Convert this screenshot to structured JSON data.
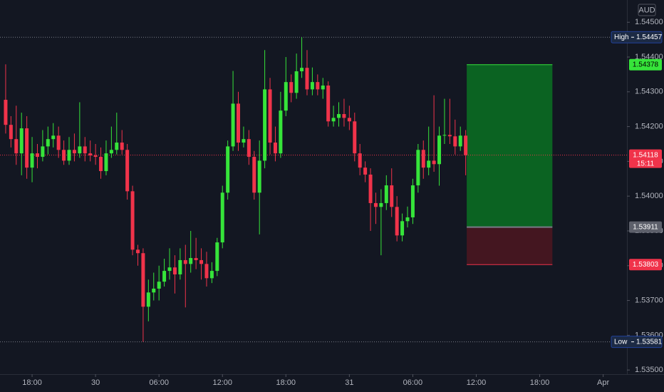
{
  "chart_data": {
    "type": "candlestick",
    "currency": "AUD",
    "up_color": "#36e43a",
    "down_color": "#f0334a",
    "grid": false,
    "xlim": [
      -1.07,
      117.5
    ],
    "ylim": [
      1.53488,
      1.54564
    ],
    "xticks": [
      {
        "value": 5,
        "label": "18:00"
      },
      {
        "value": 17,
        "label": "30"
      },
      {
        "value": 29,
        "label": "06:00"
      },
      {
        "value": 41,
        "label": "12:00"
      },
      {
        "value": 53,
        "label": "18:00"
      },
      {
        "value": 65,
        "label": "31"
      },
      {
        "value": 77,
        "label": "06:00"
      },
      {
        "value": 89,
        "label": "12:00"
      },
      {
        "value": 101,
        "label": "18:00"
      },
      {
        "value": 113,
        "label": "Apr"
      }
    ],
    "yticks": [
      {
        "value": 1.545,
        "label": "1.54500"
      },
      {
        "value": 1.544,
        "label": "1.54400"
      },
      {
        "value": 1.543,
        "label": "1.54300"
      },
      {
        "value": 1.542,
        "label": "1.54200"
      },
      {
        "value": 1.541,
        "label": "1.54100"
      },
      {
        "value": 1.54,
        "label": "1.54000"
      },
      {
        "value": 1.539,
        "label": "1.53900"
      },
      {
        "value": 1.538,
        "label": "1.53800"
      },
      {
        "value": 1.537,
        "label": "1.53700"
      },
      {
        "value": 1.536,
        "label": "1.53600"
      },
      {
        "value": 1.535,
        "label": "1.53500"
      }
    ],
    "open": [
      1.54277,
      1.54205,
      1.54164,
      1.54123,
      1.54195,
      1.54082,
      1.54123,
      1.54113,
      1.54143,
      1.54164,
      1.54174,
      1.54133,
      1.54102,
      1.54133,
      1.54123,
      1.54143,
      1.54123,
      1.54117,
      1.54113,
      1.54072,
      1.54123,
      1.54133,
      1.54154,
      1.54133,
      1.54014,
      1.53846,
      1.53836,
      1.53682,
      1.53723,
      1.53734,
      1.53754,
      1.53785,
      1.53795,
      1.53775,
      1.53816,
      1.53805,
      1.53822,
      1.53816,
      1.53805,
      1.53764,
      1.53785,
      1.53867,
      1.5401,
      1.54143,
      1.54266,
      1.54154,
      1.54164,
      1.54113,
      1.5401,
      1.54102,
      1.54307,
      1.54154,
      1.54123,
      1.54246,
      1.54328,
      1.54297,
      1.54359,
      1.54369,
      1.54307,
      1.54328,
      1.54307,
      1.54318,
      1.54215,
      1.54225,
      1.54236,
      1.54225,
      1.54215,
      1.54123,
      1.54082,
      1.54062,
      1.5398,
      1.53969,
      1.5398,
      1.54031,
      1.53969,
      1.53887,
      1.53928,
      1.53939,
      1.54031,
      1.54133,
      1.54082,
      1.54102,
      1.54092,
      1.54174,
      1.54176,
      1.54172,
      1.54143,
      1.54174
    ],
    "high": [
      1.54379,
      1.5423,
      1.5426,
      1.5424,
      1.5423,
      1.5417,
      1.5415,
      1.5419,
      1.542,
      1.5421,
      1.542,
      1.5416,
      1.5417,
      1.5418,
      1.5427,
      1.5417,
      1.5416,
      1.5415,
      1.5414,
      1.5416,
      1.542,
      1.5424,
      1.5419,
      1.5415,
      1.5403,
      1.5386,
      1.5385,
      1.5376,
      1.5378,
      1.538,
      1.5382,
      1.5385,
      1.5383,
      1.5385,
      1.5386,
      1.539,
      1.5388,
      1.5385,
      1.5384,
      1.5381,
      1.5388,
      1.5403,
      1.5416,
      1.5436,
      1.543,
      1.542,
      1.5419,
      1.5413,
      1.5416,
      1.5442,
      1.5434,
      1.542,
      1.543,
      1.544,
      1.5435,
      1.5441,
      1.54457,
      1.5442,
      1.5437,
      1.5435,
      1.5434,
      1.5433,
      1.5426,
      1.5427,
      1.5428,
      1.5426,
      1.5424,
      1.5415,
      1.541,
      1.5408,
      1.5401,
      1.5402,
      1.5406,
      1.5408,
      1.54,
      1.5395,
      1.5397,
      1.5405,
      1.5415,
      1.5416,
      1.542,
      1.5429,
      1.542,
      1.5428,
      1.5428,
      1.5422,
      1.542,
      1.5419
    ],
    "low": [
      1.5418,
      1.5414,
      1.5409,
      1.5406,
      1.5405,
      1.5404,
      1.5408,
      1.541,
      1.5412,
      1.5414,
      1.5411,
      1.5409,
      1.5409,
      1.541,
      1.5411,
      1.541,
      1.541,
      1.5409,
      1.5405,
      1.5406,
      1.5411,
      1.5412,
      1.5412,
      1.5399,
      1.5383,
      1.538,
      1.53581,
      1.5364,
      1.537,
      1.537,
      1.5374,
      1.5376,
      1.5372,
      1.5376,
      1.5368,
      1.5378,
      1.5379,
      1.5376,
      1.5374,
      1.5375,
      1.5377,
      1.5385,
      1.5399,
      1.5413,
      1.5413,
      1.5414,
      1.5409,
      1.5399,
      1.5389,
      1.5408,
      1.5412,
      1.541,
      1.5411,
      1.5423,
      1.5427,
      1.5428,
      1.5434,
      1.5429,
      1.5429,
      1.5429,
      1.5428,
      1.542,
      1.542,
      1.542,
      1.542,
      1.5419,
      1.541,
      1.5406,
      1.5404,
      1.539,
      1.5392,
      1.5383,
      1.5396,
      1.5394,
      1.5387,
      1.5387,
      1.5391,
      1.5392,
      1.5401,
      1.5405,
      1.5406,
      1.5407,
      1.5403,
      1.5415,
      1.5415,
      1.5412,
      1.5413,
      1.5406
    ],
    "close": [
      1.54205,
      1.54164,
      1.54123,
      1.54195,
      1.54082,
      1.54123,
      1.54113,
      1.54143,
      1.54164,
      1.54174,
      1.54133,
      1.54102,
      1.54133,
      1.54123,
      1.54143,
      1.54123,
      1.54117,
      1.54113,
      1.54072,
      1.54123,
      1.54133,
      1.54154,
      1.54133,
      1.54014,
      1.53846,
      1.53836,
      1.53682,
      1.53723,
      1.53734,
      1.53754,
      1.53785,
      1.53795,
      1.53775,
      1.53816,
      1.53805,
      1.53822,
      1.53816,
      1.53805,
      1.53764,
      1.53785,
      1.53867,
      1.5401,
      1.54143,
      1.54266,
      1.54154,
      1.54164,
      1.54113,
      1.5401,
      1.54102,
      1.54307,
      1.54154,
      1.54123,
      1.54246,
      1.54328,
      1.54297,
      1.54359,
      1.54369,
      1.54307,
      1.54328,
      1.54307,
      1.54318,
      1.54215,
      1.54225,
      1.54236,
      1.54225,
      1.54215,
      1.54123,
      1.54082,
      1.54062,
      1.5398,
      1.53969,
      1.5398,
      1.54031,
      1.53969,
      1.53887,
      1.53928,
      1.53939,
      1.54031,
      1.54133,
      1.54082,
      1.54102,
      1.54092,
      1.54174,
      1.54176,
      1.54172,
      1.54143,
      1.54174,
      1.54118
    ],
    "high_marker": {
      "label": "High",
      "value": 1.54457
    },
    "low_marker": {
      "label": "Low",
      "value": 1.53581
    },
    "last_price": {
      "value": 1.54118,
      "countdown": "15:11"
    },
    "position": {
      "take_profit": 1.54378,
      "entry": 1.53911,
      "stop_loss": 1.53803,
      "x_start": 87.2,
      "x_end": 103.4,
      "profit_color": "#0b6b22",
      "loss_color": "#4a1620",
      "entry_color": "#5d606b"
    }
  }
}
